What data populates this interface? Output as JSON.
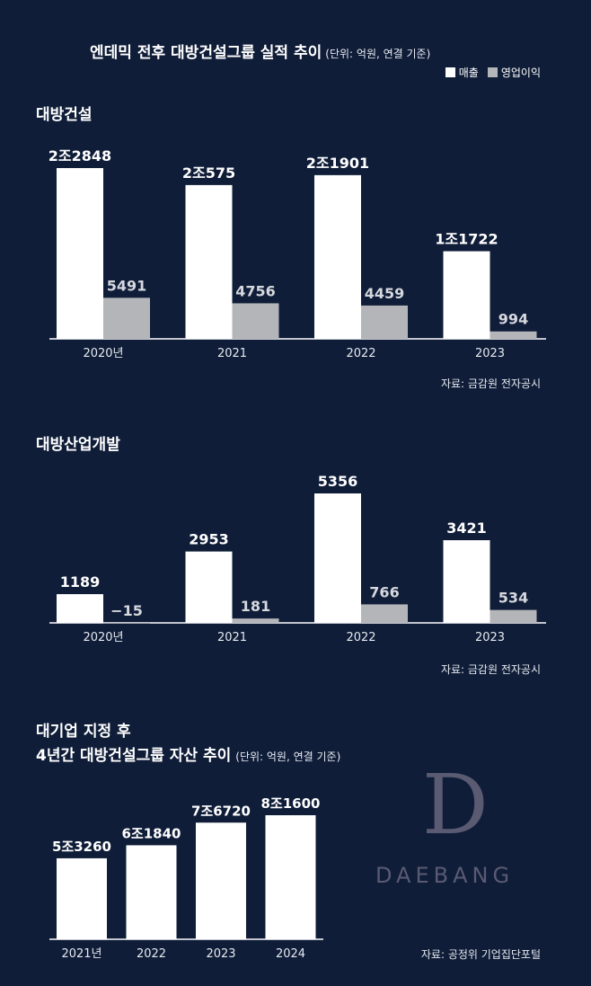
{
  "header": {
    "title": "엔데믹 전후 대방건설그룹 실적 추이",
    "unit": "(단위: 억원, 연결 기준)",
    "legend": [
      {
        "label": "매출",
        "color": "#ffffff"
      },
      {
        "label": "영업이익",
        "color": "#b4b5b9"
      }
    ]
  },
  "chart_data": [
    {
      "type": "bar",
      "title": "대방건설",
      "categories": [
        "2020년",
        "2021",
        "2022",
        "2023"
      ],
      "series": [
        {
          "name": "매출",
          "values": [
            22848,
            20575,
            21901,
            11722
          ],
          "labels": [
            "2조2848",
            "2조575",
            "2조1901",
            "1조1722"
          ],
          "color": "#ffffff"
        },
        {
          "name": "영업이익",
          "values": [
            5491,
            4756,
            4459,
            994
          ],
          "labels": [
            "5491",
            "4756",
            "4459",
            "994"
          ],
          "color": "#b4b5b9"
        }
      ],
      "source": "자료: 금감원 전자공시"
    },
    {
      "type": "bar",
      "title": "대방산업개발",
      "categories": [
        "2020년",
        "2021",
        "2022",
        "2023"
      ],
      "series": [
        {
          "name": "매출",
          "values": [
            1189,
            2953,
            5356,
            3421
          ],
          "labels": [
            "1189",
            "2953",
            "5356",
            "3421"
          ],
          "color": "#ffffff"
        },
        {
          "name": "영업이익",
          "values": [
            -15,
            181,
            766,
            534
          ],
          "labels": [
            "−15",
            "181",
            "766",
            "534"
          ],
          "color": "#b4b5b9"
        }
      ],
      "source": "자료: 금감원 전자공시"
    },
    {
      "type": "bar",
      "title": "대기업 지정 후",
      "subtitle": "4년간 대방건설그룹 자산 추이",
      "unit": "(단위: 억원, 연결 기준)",
      "categories": [
        "2021년",
        "2022",
        "2023",
        "2024"
      ],
      "series": [
        {
          "values": [
            53260,
            61840,
            76720,
            81600
          ],
          "labels": [
            "5조3260",
            "6조1840",
            "7조6720",
            "8조1600"
          ],
          "color": "#ffffff"
        }
      ],
      "source": "자료: 공정위 기업집단포털"
    }
  ],
  "logo": {
    "mark": "D",
    "text": "DAEBANG"
  }
}
